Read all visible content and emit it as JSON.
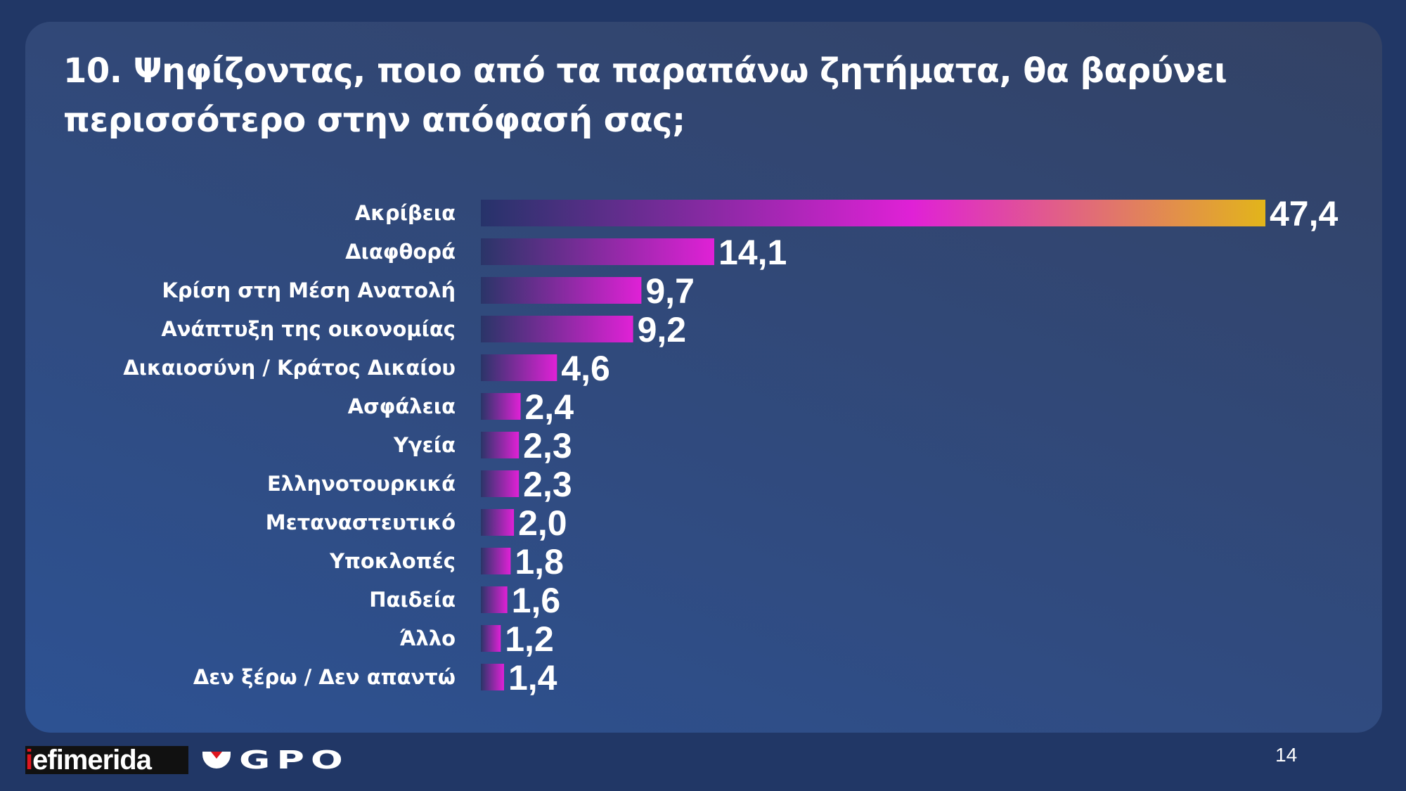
{
  "chart_data": {
    "type": "bar",
    "orientation": "horizontal",
    "title": "10. Ψηφίζοντας, ποιο από τα παραπάνω ζητήματα, θα βαρύνει περισσότερο στην απόφασή σας;",
    "categories": [
      "Ακρίβεια",
      "Διαφθορά",
      "Κρίση στη Μέση Ανατολή",
      "Ανάπτυξη της οικονομίας",
      "Δικαιοσύνη / Κράτος Δικαίου",
      "Ασφάλεια",
      "Υγεία",
      "Ελληνοτουρκικά",
      "Μεταναστευτικό",
      "Υποκλοπές",
      "Παιδεία",
      "Άλλο",
      "Δεν ξέρω / Δεν απαντώ"
    ],
    "values": [
      47.4,
      14.1,
      9.7,
      9.2,
      4.6,
      2.4,
      2.3,
      2.3,
      2.0,
      1.8,
      1.6,
      1.2,
      1.4
    ],
    "value_labels": [
      "47,4",
      "14,1",
      "9,7",
      "9,2",
      "4,6",
      "2,4",
      "2,3",
      "2,3",
      "2,0",
      "1,8",
      "1,6",
      "1,2",
      "1,4"
    ],
    "xlim": [
      0,
      47.4
    ],
    "grid": false,
    "colors": {
      "start": "#26336a",
      "mid": "#e021d6",
      "end": "#e2b51a"
    }
  },
  "footer": {
    "logo_left": "iefimerida",
    "logo_right": "GPO",
    "page_number": "14"
  }
}
